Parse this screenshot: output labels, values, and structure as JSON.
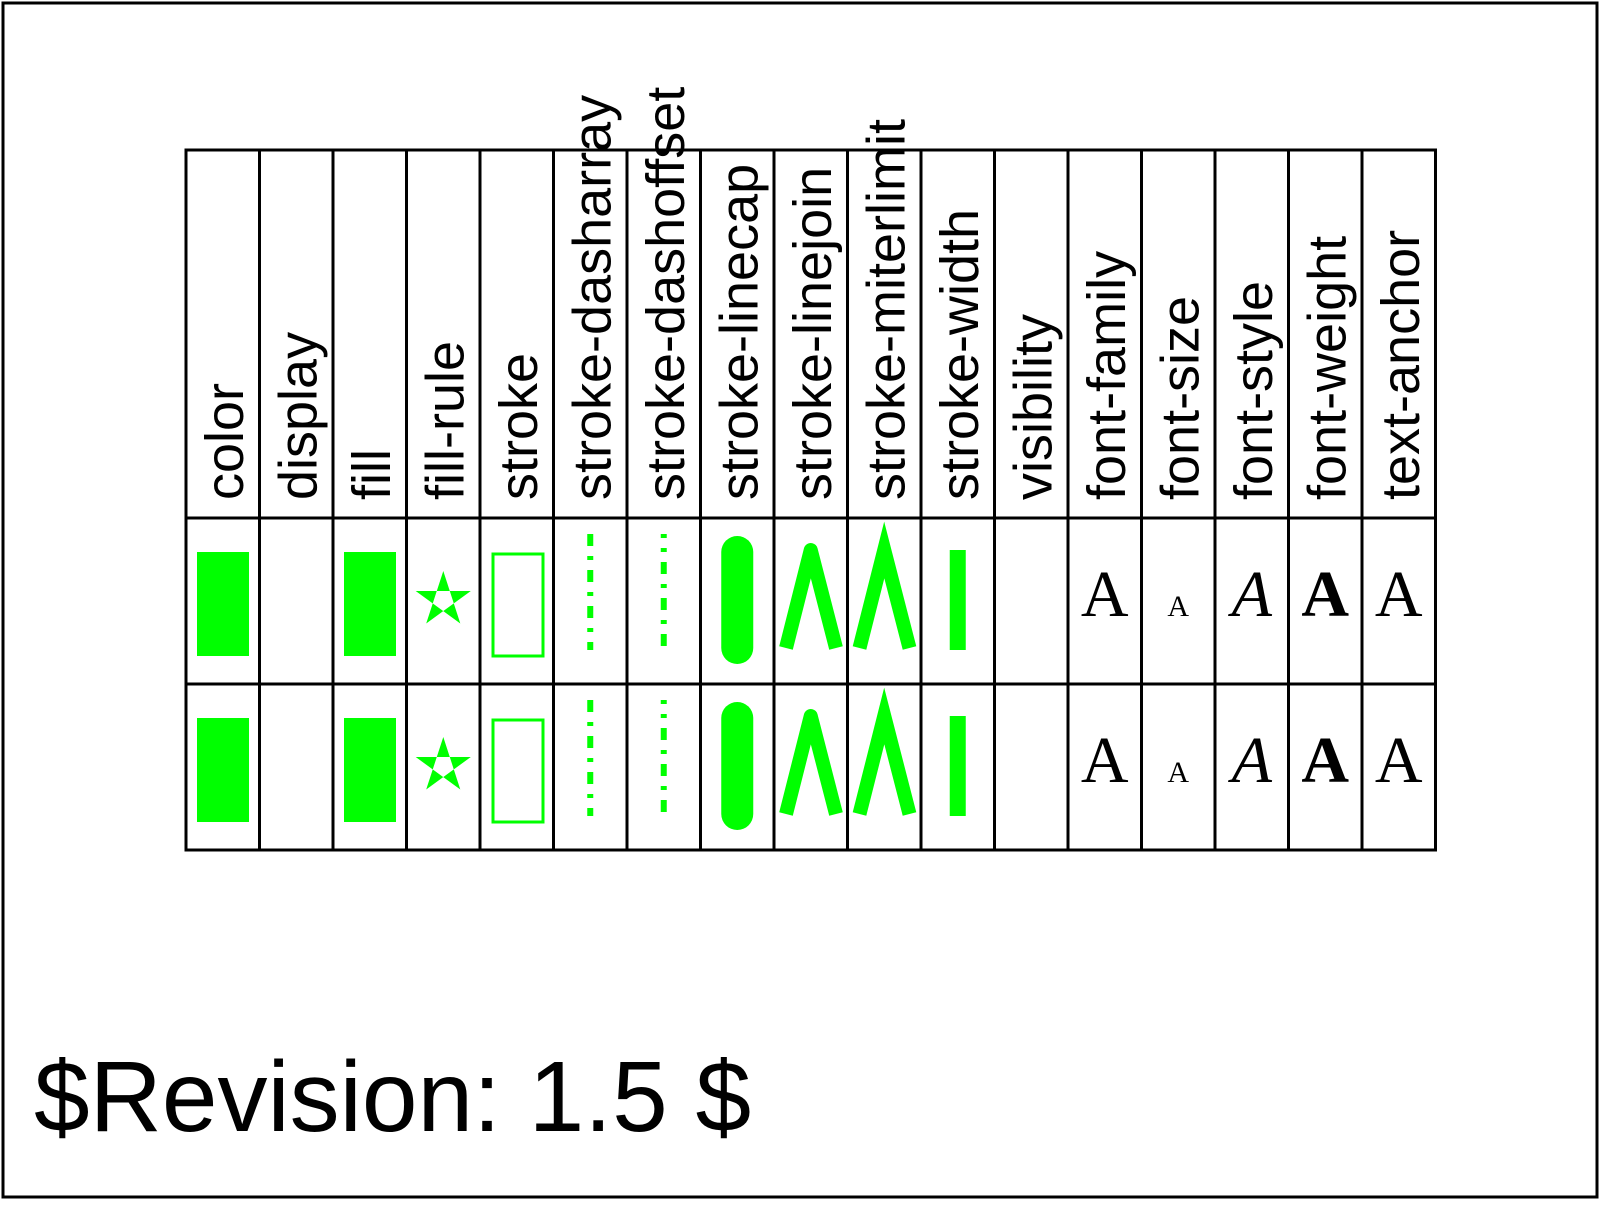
{
  "properties": [
    "color",
    "display",
    "fill",
    "fill-rule",
    "stroke",
    "stroke-dasharray",
    "stroke-dashoffset",
    "stroke-linecap",
    "stroke-linejoin",
    "stroke-miterlimit",
    "stroke-width",
    "visibility",
    "font-family",
    "font-size",
    "font-style",
    "font-weight",
    "text-anchor"
  ],
  "sample_glyph": "A",
  "accent_color": "#00ff00",
  "revision": "$Revision: 1.5 $"
}
